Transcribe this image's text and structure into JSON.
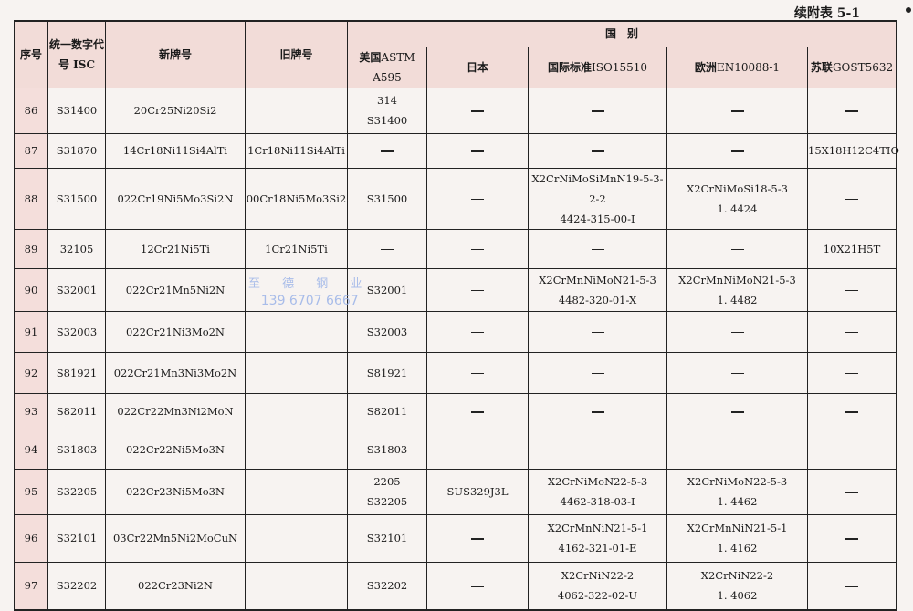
{
  "caption": "续附表 5-1",
  "watermark": {
    "company": "至 德 钢 业",
    "phone": "139 6707 6667"
  },
  "header": {
    "seq": "序号",
    "isc": [
      "统一数字",
      "代号 ISC"
    ],
    "new_grade": "新牌号",
    "old_grade": "旧牌号",
    "country_group": "国　别",
    "countries": [
      {
        "name": "美国",
        "std": "ASTM A595"
      },
      {
        "name": "日本",
        "std": ""
      },
      {
        "name": "国际标准",
        "std": "ISO15510"
      },
      {
        "name": "欧洲",
        "std": "EN10088-1"
      },
      {
        "name": "苏联",
        "std": "GOST5632"
      }
    ]
  },
  "rows": [
    {
      "seq": "86",
      "isc": "S31400",
      "new": "20Cr25Ni20Si2",
      "old": "",
      "us": [
        "314",
        "S31400"
      ],
      "jp": [
        "—"
      ],
      "iso": [
        "—"
      ],
      "eu": [
        "—"
      ],
      "su": [
        "—"
      ]
    },
    {
      "seq": "87",
      "isc": "S31870",
      "new": "14Cr18Ni11Si4AlTi",
      "old": "1Cr18Ni11Si4AlTi",
      "us": [
        "—"
      ],
      "jp": [
        "—"
      ],
      "iso": [
        "—"
      ],
      "eu": [
        "—"
      ],
      "su": [
        "15X18H12C4TIO"
      ]
    },
    {
      "seq": "88",
      "isc": "S31500",
      "new": "022Cr19Ni5Mo3Si2N",
      "old": "00Cr18Ni5Mo3Si2",
      "us": [
        "S31500"
      ],
      "jp": [
        "—"
      ],
      "iso": [
        "X2CrNiMoSiMnN19-5-3-2-2",
        "4424-315-00-I"
      ],
      "eu": [
        "X2CrNiMoSi18-5-3",
        "1. 4424"
      ],
      "su": [
        "—"
      ]
    },
    {
      "seq": "89",
      "isc": "32105",
      "new": "12Cr21Ni5Ti",
      "old": "1Cr21Ni5Ti",
      "us": [
        "—"
      ],
      "jp": [
        "—"
      ],
      "iso": [
        "—"
      ],
      "eu": [
        "—"
      ],
      "su": [
        "10X21H5T"
      ]
    },
    {
      "seq": "90",
      "isc": "S32001",
      "new": "022Cr21Mn5Ni2N",
      "old": "",
      "us": [
        "S32001"
      ],
      "jp": [
        "—"
      ],
      "iso": [
        "X2CrMnNiMoN21-5-3",
        "4482-320-01-X"
      ],
      "eu": [
        "X2CrMnNiMoN21-5-3",
        "1. 4482"
      ],
      "su": [
        "—"
      ]
    },
    {
      "seq": "91",
      "isc": "S32003",
      "new": "022Cr21Ni3Mo2N",
      "old": "",
      "us": [
        "S32003"
      ],
      "jp": [
        "—"
      ],
      "iso": [
        "—"
      ],
      "eu": [
        "—"
      ],
      "su": [
        "—"
      ]
    },
    {
      "seq": "92",
      "isc": "S81921",
      "new": "022Cr21Mn3Ni3Mo2N",
      "old": "",
      "us": [
        "S81921"
      ],
      "jp": [
        "—"
      ],
      "iso": [
        "—"
      ],
      "eu": [
        "—"
      ],
      "su": [
        "—"
      ]
    },
    {
      "seq": "93",
      "isc": "S82011",
      "new": "022Cr22Mn3Ni2MoN",
      "old": "",
      "us": [
        "S82011"
      ],
      "jp": [
        "—"
      ],
      "iso": [
        "—"
      ],
      "eu": [
        "—"
      ],
      "su": [
        "—"
      ]
    },
    {
      "seq": "94",
      "isc": "S31803",
      "new": "022Cr22Ni5Mo3N",
      "old": "",
      "us": [
        "S31803"
      ],
      "jp": [
        "—"
      ],
      "iso": [
        "—"
      ],
      "eu": [
        "—"
      ],
      "su": [
        "—"
      ]
    },
    {
      "seq": "95",
      "isc": "S32205",
      "new": "022Cr23Ni5Mo3N",
      "old": "",
      "us": [
        "2205",
        "S32205"
      ],
      "jp": [
        "SUS329J3L"
      ],
      "iso": [
        "X2CrNiMoN22-5-3",
        "4462-318-03-I"
      ],
      "eu": [
        "X2CrNiMoN22-5-3",
        "1. 4462"
      ],
      "su": [
        "—"
      ]
    },
    {
      "seq": "96",
      "isc": "S32101",
      "new": "03Cr22Mn5Ni2MoCuN",
      "old": "",
      "us": [
        "S32101"
      ],
      "jp": [
        "—"
      ],
      "iso": [
        "X2CrMnNiN21-5-1",
        "4162-321-01-E"
      ],
      "eu": [
        "X2CrMnNiN21-5-1",
        "1. 4162"
      ],
      "su": [
        "—"
      ]
    },
    {
      "seq": "97",
      "isc": "S32202",
      "new": "022Cr23Ni2N",
      "old": "",
      "us": [
        "S32202"
      ],
      "jp": [
        "—"
      ],
      "iso": [
        "X2CrNiN22-2",
        "4062-322-02-U"
      ],
      "eu": [
        "X2CrNiN22-2",
        "1. 4062"
      ],
      "su": [
        "—"
      ]
    }
  ]
}
